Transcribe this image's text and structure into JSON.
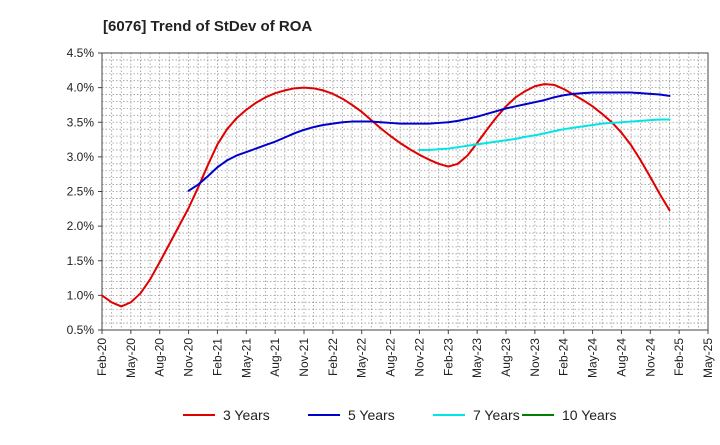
{
  "chart_data": {
    "type": "line",
    "title": "[6076]  Trend of StDev of ROA",
    "xlabel": "",
    "ylabel": "",
    "x_ticks": [
      "Feb-20",
      "May-20",
      "Aug-20",
      "Nov-20",
      "Feb-21",
      "May-21",
      "Aug-21",
      "Nov-21",
      "Feb-22",
      "May-22",
      "Aug-22",
      "Nov-22",
      "Feb-23",
      "May-23",
      "Aug-23",
      "Nov-23",
      "Feb-24",
      "May-24",
      "Aug-24",
      "Nov-24",
      "Feb-25",
      "May-25"
    ],
    "y_ticks": [
      "0.5%",
      "1.0%",
      "1.5%",
      "2.0%",
      "2.5%",
      "3.0%",
      "3.5%",
      "4.0%",
      "4.5%"
    ],
    "ylim": [
      0.5,
      4.5
    ],
    "grid": true,
    "legend_position": "bottom",
    "series": [
      {
        "name": "3 Years",
        "color": "#e00000",
        "points": [
          [
            "Feb-20",
            1.0
          ],
          [
            "Mar-20",
            0.9
          ],
          [
            "Apr-20",
            0.84
          ],
          [
            "May-20",
            0.9
          ],
          [
            "Jun-20",
            1.03
          ],
          [
            "Jul-20",
            1.23
          ],
          [
            "Aug-20",
            1.48
          ],
          [
            "Sep-20",
            1.74
          ],
          [
            "Oct-20",
            2.0
          ],
          [
            "Nov-20",
            2.26
          ],
          [
            "Dec-20",
            2.56
          ],
          [
            "Jan-21",
            2.88
          ],
          [
            "Feb-21",
            3.18
          ],
          [
            "Mar-21",
            3.4
          ],
          [
            "Apr-21",
            3.56
          ],
          [
            "May-21",
            3.68
          ],
          [
            "Jun-21",
            3.78
          ],
          [
            "Jul-21",
            3.86
          ],
          [
            "Aug-21",
            3.92
          ],
          [
            "Sep-21",
            3.96
          ],
          [
            "Oct-21",
            3.99
          ],
          [
            "Nov-21",
            4.0
          ],
          [
            "Dec-21",
            3.99
          ],
          [
            "Jan-22",
            3.96
          ],
          [
            "Feb-22",
            3.91
          ],
          [
            "Mar-22",
            3.84
          ],
          [
            "Apr-22",
            3.75
          ],
          [
            "May-22",
            3.65
          ],
          [
            "Jun-22",
            3.53
          ],
          [
            "Jul-22",
            3.41
          ],
          [
            "Aug-22",
            3.3
          ],
          [
            "Sep-22",
            3.2
          ],
          [
            "Oct-22",
            3.11
          ],
          [
            "Nov-22",
            3.03
          ],
          [
            "Dec-22",
            2.96
          ],
          [
            "Jan-23",
            2.9
          ],
          [
            "Feb-23",
            2.86
          ],
          [
            "Mar-23",
            2.9
          ],
          [
            "Apr-23",
            3.02
          ],
          [
            "May-23",
            3.2
          ],
          [
            "Jun-23",
            3.39
          ],
          [
            "Jul-23",
            3.57
          ],
          [
            "Aug-23",
            3.73
          ],
          [
            "Sep-23",
            3.86
          ],
          [
            "Oct-23",
            3.95
          ],
          [
            "Nov-23",
            4.02
          ],
          [
            "Dec-23",
            4.05
          ],
          [
            "Jan-24",
            4.04
          ],
          [
            "Feb-24",
            3.98
          ],
          [
            "Mar-24",
            3.9
          ],
          [
            "Apr-24",
            3.82
          ],
          [
            "May-24",
            3.73
          ],
          [
            "Jun-24",
            3.62
          ],
          [
            "Jul-24",
            3.5
          ],
          [
            "Aug-24",
            3.35
          ],
          [
            "Sep-24",
            3.17
          ],
          [
            "Oct-24",
            2.95
          ],
          [
            "Nov-24",
            2.71
          ],
          [
            "Dec-24",
            2.46
          ],
          [
            "Jan-25",
            2.23
          ]
        ]
      },
      {
        "name": "5 Years",
        "color": "#0000cc",
        "points": [
          [
            "Nov-20",
            2.51
          ],
          [
            "Dec-20",
            2.6
          ],
          [
            "Jan-21",
            2.72
          ],
          [
            "Feb-21",
            2.85
          ],
          [
            "Mar-21",
            2.95
          ],
          [
            "Apr-21",
            3.02
          ],
          [
            "May-21",
            3.07
          ],
          [
            "Jun-21",
            3.12
          ],
          [
            "Jul-21",
            3.17
          ],
          [
            "Aug-21",
            3.22
          ],
          [
            "Sep-21",
            3.28
          ],
          [
            "Oct-21",
            3.34
          ],
          [
            "Nov-21",
            3.39
          ],
          [
            "Dec-21",
            3.43
          ],
          [
            "Jan-22",
            3.46
          ],
          [
            "Feb-22",
            3.48
          ],
          [
            "Mar-22",
            3.5
          ],
          [
            "Apr-22",
            3.51
          ],
          [
            "May-22",
            3.51
          ],
          [
            "Jun-22",
            3.51
          ],
          [
            "Jul-22",
            3.5
          ],
          [
            "Aug-22",
            3.49
          ],
          [
            "Sep-22",
            3.48
          ],
          [
            "Oct-22",
            3.48
          ],
          [
            "Nov-22",
            3.48
          ],
          [
            "Dec-22",
            3.48
          ],
          [
            "Jan-23",
            3.49
          ],
          [
            "Feb-23",
            3.5
          ],
          [
            "Mar-23",
            3.52
          ],
          [
            "Apr-23",
            3.55
          ],
          [
            "May-23",
            3.58
          ],
          [
            "Jun-23",
            3.62
          ],
          [
            "Jul-23",
            3.66
          ],
          [
            "Aug-23",
            3.7
          ],
          [
            "Sep-23",
            3.73
          ],
          [
            "Oct-23",
            3.76
          ],
          [
            "Nov-23",
            3.79
          ],
          [
            "Dec-23",
            3.82
          ],
          [
            "Jan-24",
            3.86
          ],
          [
            "Feb-24",
            3.89
          ],
          [
            "Mar-24",
            3.91
          ],
          [
            "Apr-24",
            3.92
          ],
          [
            "May-24",
            3.93
          ],
          [
            "Jun-24",
            3.93
          ],
          [
            "Jul-24",
            3.93
          ],
          [
            "Aug-24",
            3.93
          ],
          [
            "Sep-24",
            3.93
          ],
          [
            "Oct-24",
            3.92
          ],
          [
            "Nov-24",
            3.91
          ],
          [
            "Dec-24",
            3.9
          ],
          [
            "Jan-25",
            3.88
          ]
        ]
      },
      {
        "name": "7 Years",
        "color": "#00e5e5",
        "points": [
          [
            "Nov-22",
            3.1
          ],
          [
            "Dec-22",
            3.1
          ],
          [
            "Jan-23",
            3.11
          ],
          [
            "Feb-23",
            3.12
          ],
          [
            "Mar-23",
            3.14
          ],
          [
            "Apr-23",
            3.16
          ],
          [
            "May-23",
            3.18
          ],
          [
            "Jun-23",
            3.2
          ],
          [
            "Jul-23",
            3.22
          ],
          [
            "Aug-23",
            3.24
          ],
          [
            "Sep-23",
            3.26
          ],
          [
            "Oct-23",
            3.29
          ],
          [
            "Nov-23",
            3.31
          ],
          [
            "Dec-23",
            3.34
          ],
          [
            "Jan-24",
            3.37
          ],
          [
            "Feb-24",
            3.4
          ],
          [
            "Mar-24",
            3.42
          ],
          [
            "Apr-24",
            3.44
          ],
          [
            "May-24",
            3.46
          ],
          [
            "Jun-24",
            3.48
          ],
          [
            "Jul-24",
            3.49
          ],
          [
            "Aug-24",
            3.5
          ],
          [
            "Sep-24",
            3.51
          ],
          [
            "Oct-24",
            3.52
          ],
          [
            "Nov-24",
            3.53
          ],
          [
            "Dec-24",
            3.54
          ],
          [
            "Jan-25",
            3.54
          ]
        ]
      },
      {
        "name": "10 Years",
        "color": "#008000",
        "points": []
      }
    ]
  }
}
